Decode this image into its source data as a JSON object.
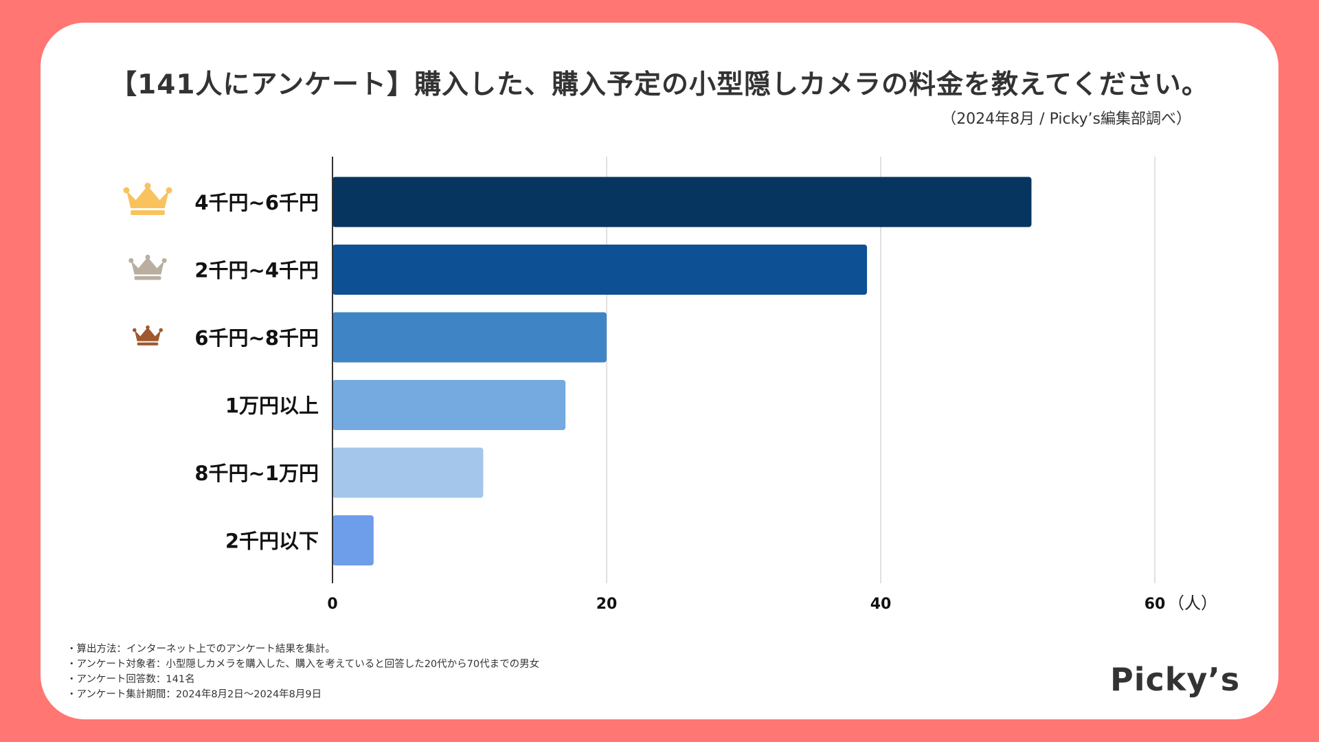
{
  "title": "【141人にアンケート】購入した、購入予定の小型隠しカメラの料金を教えてください。",
  "subtitle": "（2024年8月 / Picky’s編集部調べ）",
  "unit_label": "（人）",
  "notes": [
    "・算出方法：インターネット上でのアンケート結果を集計。",
    "・アンケート対象者：小型隠しカメラを購入した、購入を考えていると回答した20代から70代までの男女",
    "・アンケート回答数：141名",
    "・アンケート集計期間：2024年8月2日〜2024年8月9日"
  ],
  "logo": "Picky’s",
  "colors": {
    "background": "#ff7672",
    "gold": "#f9c25c",
    "silver": "#b9aea0",
    "bronze": "#a0582f",
    "bars": [
      "#06355f",
      "#0d5194",
      "#3f85c6",
      "#74aadf",
      "#a3c6ea",
      "#6e9de9"
    ]
  },
  "chart_data": {
    "type": "bar",
    "orientation": "horizontal",
    "title": "【141人にアンケート】購入した、購入予定の小型隠しカメラの料金を教えてください。",
    "categories": [
      "4千円~6千円",
      "2千円~4千円",
      "6千円~8千円",
      "1万円以上",
      "8千円~1万円",
      "2千円以下"
    ],
    "values": [
      51,
      39,
      20,
      17,
      11,
      3
    ],
    "rank_icons": [
      "gold-crown",
      "silver-crown",
      "bronze-crown",
      "",
      "",
      ""
    ],
    "xlim": [
      0,
      60
    ],
    "xticks": [
      0,
      20,
      40,
      60
    ],
    "xlabel": "（人）",
    "ylabel": "",
    "grid": true
  }
}
